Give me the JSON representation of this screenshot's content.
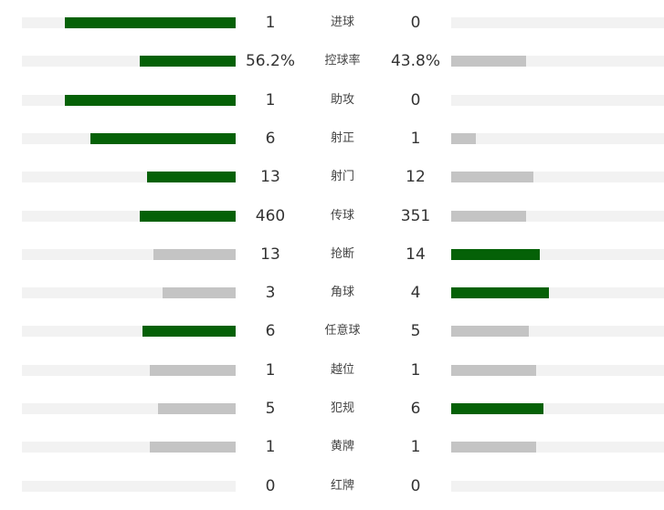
{
  "colors": {
    "leader": "#056107",
    "trailer": "#c4c4c4",
    "track": "#f2f2f2"
  },
  "stats": [
    {
      "label": "进球",
      "home": "1",
      "away": "0",
      "home_frac": 0.8,
      "away_frac": 0.0,
      "home_color": "#056107",
      "away_color": "#c4c4c4"
    },
    {
      "label": "控球率",
      "home": "56.2%",
      "away": "43.8%",
      "home_frac": 0.45,
      "away_frac": 0.35,
      "home_color": "#056107",
      "away_color": "#c4c4c4"
    },
    {
      "label": "助攻",
      "home": "1",
      "away": "0",
      "home_frac": 0.8,
      "away_frac": 0.0,
      "home_color": "#056107",
      "away_color": "#c4c4c4"
    },
    {
      "label": "射正",
      "home": "6",
      "away": "1",
      "home_frac": 0.68,
      "away_frac": 0.115,
      "home_color": "#056107",
      "away_color": "#c4c4c4"
    },
    {
      "label": "射门",
      "home": "13",
      "away": "12",
      "home_frac": 0.415,
      "away_frac": 0.385,
      "home_color": "#056107",
      "away_color": "#c4c4c4"
    },
    {
      "label": "传球",
      "home": "460",
      "away": "351",
      "home_frac": 0.45,
      "away_frac": 0.35,
      "home_color": "#056107",
      "away_color": "#c4c4c4"
    },
    {
      "label": "抢断",
      "home": "13",
      "away": "14",
      "home_frac": 0.385,
      "away_frac": 0.415,
      "home_color": "#c4c4c4",
      "away_color": "#056107"
    },
    {
      "label": "角球",
      "home": "3",
      "away": "4",
      "home_frac": 0.34,
      "away_frac": 0.46,
      "home_color": "#c4c4c4",
      "away_color": "#056107"
    },
    {
      "label": "任意球",
      "home": "6",
      "away": "5",
      "home_frac": 0.435,
      "away_frac": 0.365,
      "home_color": "#056107",
      "away_color": "#c4c4c4"
    },
    {
      "label": "越位",
      "home": "1",
      "away": "1",
      "home_frac": 0.4,
      "away_frac": 0.4,
      "home_color": "#c4c4c4",
      "away_color": "#c4c4c4"
    },
    {
      "label": "犯规",
      "home": "5",
      "away": "6",
      "home_frac": 0.365,
      "away_frac": 0.435,
      "home_color": "#c4c4c4",
      "away_color": "#056107"
    },
    {
      "label": "黄牌",
      "home": "1",
      "away": "1",
      "home_frac": 0.4,
      "away_frac": 0.4,
      "home_color": "#c4c4c4",
      "away_color": "#c4c4c4"
    },
    {
      "label": "红牌",
      "home": "0",
      "away": "0",
      "home_frac": 0.0,
      "away_frac": 0.0,
      "home_color": "#c4c4c4",
      "away_color": "#c4c4c4"
    }
  ]
}
